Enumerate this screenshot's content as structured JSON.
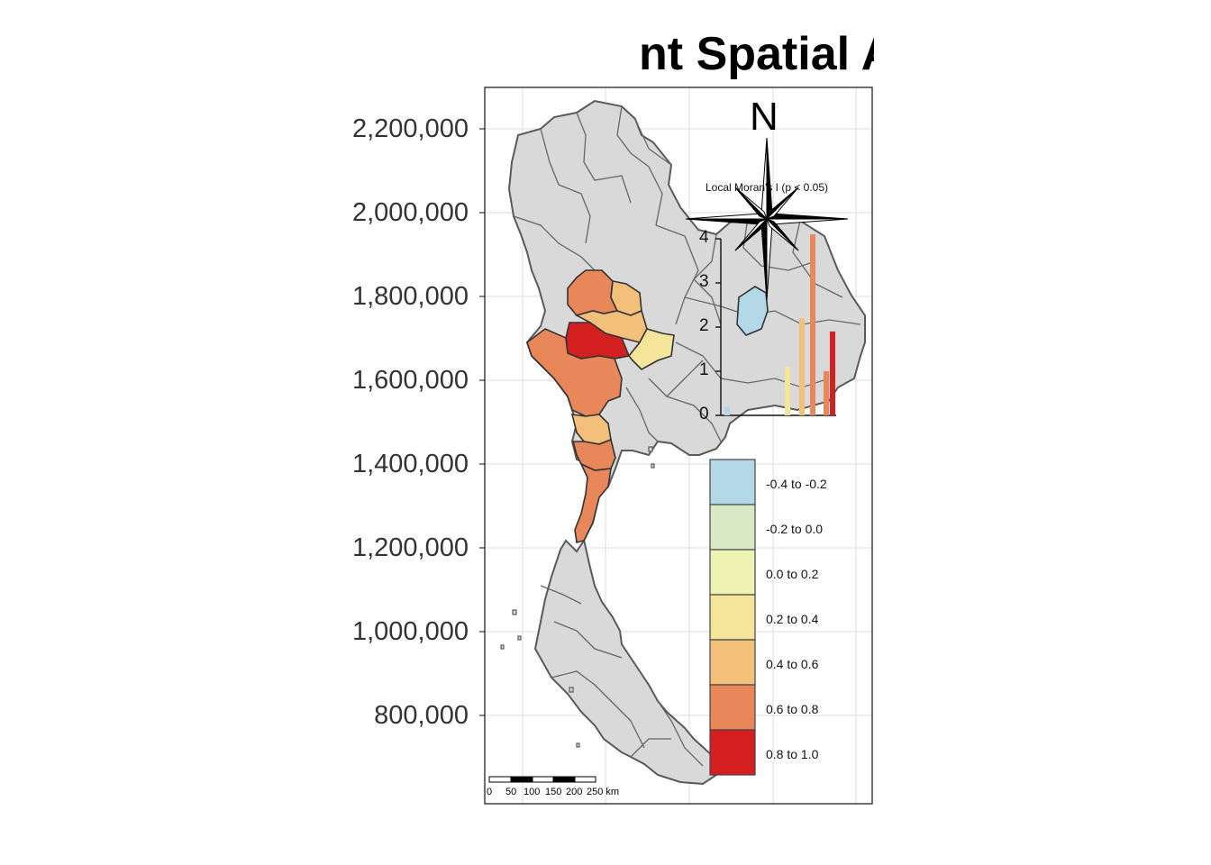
{
  "title": "nt Spatial Autocorrelatio",
  "y_axis": {
    "tick_labels": [
      "2,200,000",
      "2,000,000",
      "1,800,000",
      "1,600,000",
      "1,400,000",
      "1,200,000",
      "1,000,000",
      "800,000"
    ]
  },
  "north_arrow": {
    "label": "N"
  },
  "legend": {
    "items": [
      {
        "label": "-0.4 to -0.2",
        "color": "#b3d9e9"
      },
      {
        "label": "-0.2 to 0.0",
        "color": "#d9e8c5"
      },
      {
        "label": "0.0 to 0.2",
        "color": "#eef2b3"
      },
      {
        "label": "0.2 to 0.4",
        "color": "#f5e59a"
      },
      {
        "label": "0.4 to 0.6",
        "color": "#f2c07a"
      },
      {
        "label": "0.6 to 0.8",
        "color": "#e8885a"
      },
      {
        "label": "0.8 to 1.0",
        "color": "#d31f1f"
      }
    ]
  },
  "scale_bar": {
    "labels": [
      "0",
      "50",
      "100",
      "150",
      "200",
      "250 km"
    ]
  },
  "inset_chart": {
    "title": "Local Moran's I (p < 0.05)",
    "y_ticks": [
      "0",
      "1",
      "2",
      "3",
      "4"
    ]
  },
  "colors": {
    "province_fill": "#d9d9d9",
    "province_stroke": "#5a5a5a",
    "grid": "#e0e0e0"
  },
  "chart_data": {
    "type": "bar",
    "title": "Local Moran's I (p < 0.05)",
    "ylim": [
      0,
      4
    ],
    "series": [
      {
        "values": [
          0.2,
          1.1,
          2.2,
          4.1,
          1.0,
          1.9
        ]
      }
    ]
  }
}
